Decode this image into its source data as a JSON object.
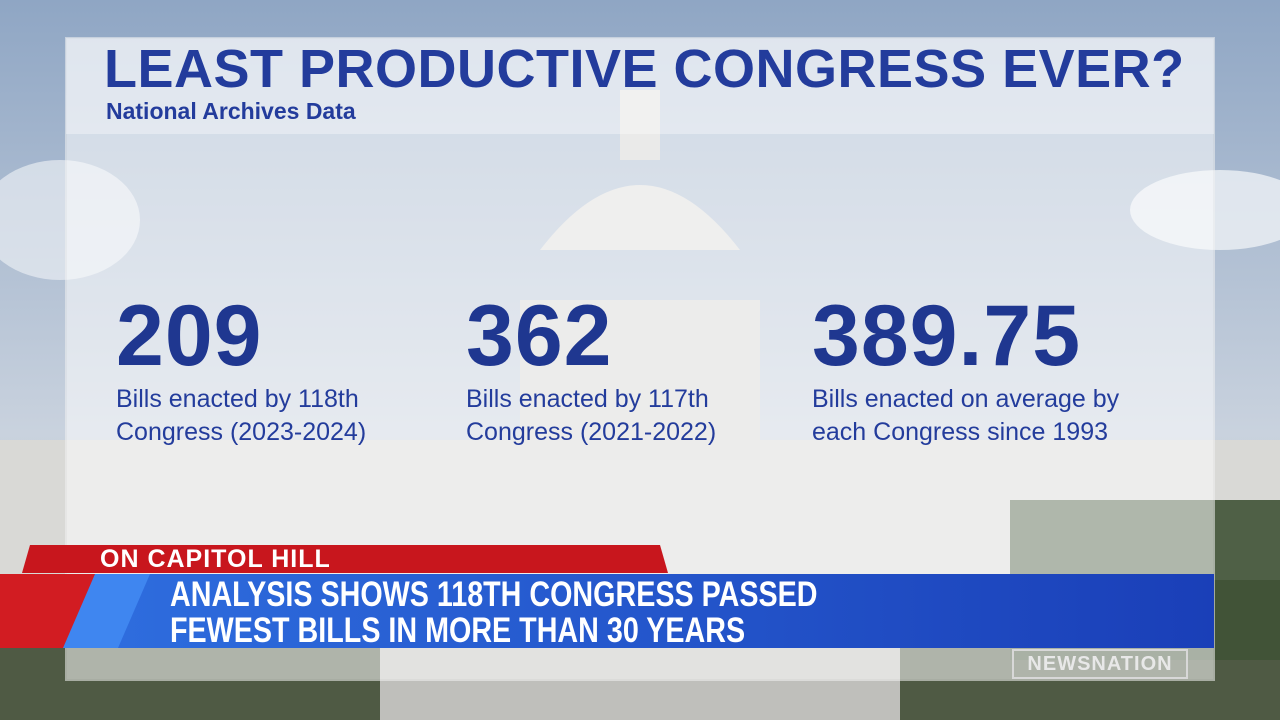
{
  "header": {
    "title": "LEAST PRODUCTIVE CONGRESS EVER?",
    "subtitle": "National Archives Data"
  },
  "stats": [
    {
      "value": "209",
      "lines": [
        "Bills enacted by 118th",
        "Congress (2023-2024)"
      ]
    },
    {
      "value": "362",
      "lines": [
        "Bills enacted by 117th",
        "Congress (2021-2022)"
      ]
    },
    {
      "value": "389.75",
      "lines": [
        "Bills enacted on average by",
        "each Congress since 1993"
      ]
    }
  ],
  "lower_third": {
    "label": "ON CAPITOL HILL",
    "headline": [
      "ANALYSIS SHOWS 118TH CONGRESS PASSED",
      "FEWEST BILLS IN MORE THAN 30 YEARS"
    ]
  },
  "logo": "NEWSNATION"
}
